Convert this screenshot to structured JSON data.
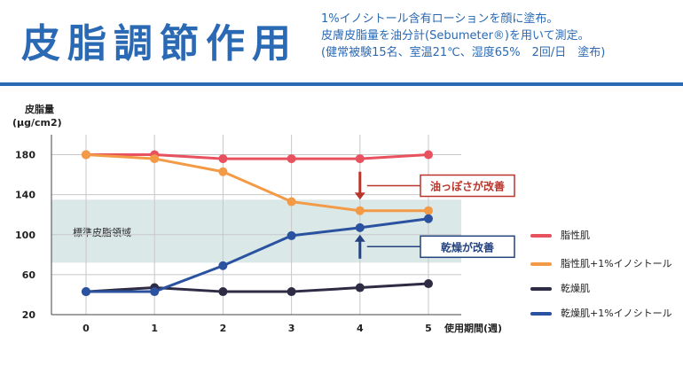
{
  "header": {
    "title": "皮脂調節作用",
    "desc_lines": [
      "1%イノシトール含有ローションを顔に塗布。",
      "皮膚皮脂量を油分計(Sebumeter®)を用いて測定。",
      "(健常被験15名、室温21℃、湿度65%　2回/日　塗布)"
    ]
  },
  "colors": {
    "title": "#2a69b3",
    "oily": "#e8525e",
    "oily_inositol": "#f39a46",
    "dry": "#2e2c44",
    "dry_inositol": "#2b52a0",
    "band": "#dbe8e8",
    "arrow_oily": "#b8352c",
    "arrow_dry": "#24427e"
  },
  "chart_data": {
    "type": "line",
    "ylabel_line1": "皮脂量",
    "ylabel_line2": "(μg/cm2)",
    "xlabel": "使用期間(週)",
    "x": [
      0,
      1,
      2,
      3,
      4,
      5
    ],
    "x_tick_labels": [
      "0",
      "1",
      "2",
      "3",
      "4",
      "5"
    ],
    "ylim": [
      20,
      200
    ],
    "y_ticks": [
      20,
      60,
      100,
      140,
      180
    ],
    "y_tick_labels": [
      "20",
      "60",
      "100",
      "140",
      "180"
    ],
    "band": {
      "label": "標準皮脂領域",
      "y_range": [
        72,
        135
      ]
    },
    "series": [
      {
        "key": "oily",
        "name": "脂性肌",
        "values": [
          180,
          180,
          176,
          176,
          176,
          180
        ]
      },
      {
        "key": "oily_inositol",
        "name": "脂性肌+1%イノシトール",
        "values": [
          180,
          176,
          163,
          133,
          124,
          124
        ]
      },
      {
        "key": "dry",
        "name": "乾燥肌",
        "values": [
          43,
          47,
          43,
          43,
          47,
          51
        ]
      },
      {
        "key": "dry_inositol",
        "name": "乾燥肌+1%イノシトール",
        "values": [
          43,
          43,
          69,
          99,
          107,
          116
        ]
      }
    ],
    "annotations": [
      {
        "key": "oily",
        "text": "油っぽさが改善",
        "from": 163,
        "to": 135,
        "x": 4,
        "color_key": "arrow_oily"
      },
      {
        "key": "dry",
        "text": "乾燥が改善",
        "from": 76,
        "to": 100,
        "x": 4,
        "color_key": "arrow_dry"
      }
    ]
  }
}
